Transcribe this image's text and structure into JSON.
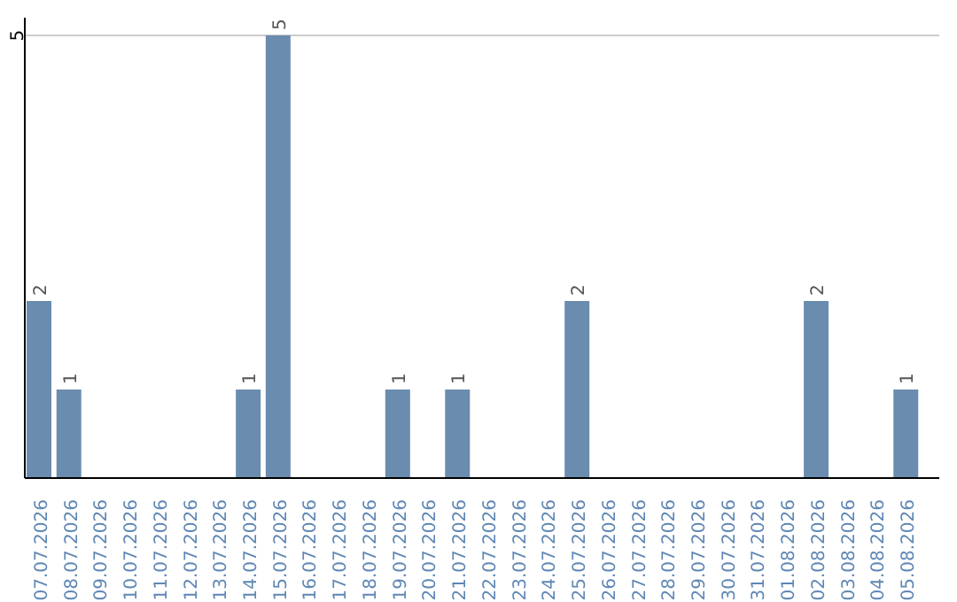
{
  "chart_data": {
    "type": "bar",
    "categories": [
      "07.07.2026",
      "08.07.2026",
      "09.07.2026",
      "10.07.2026",
      "11.07.2026",
      "12.07.2026",
      "13.07.2026",
      "14.07.2026",
      "15.07.2026",
      "16.07.2026",
      "17.07.2026",
      "18.07.2026",
      "19.07.2026",
      "20.07.2026",
      "21.07.2026",
      "22.07.2026",
      "23.07.2026",
      "24.07.2026",
      "25.07.2026",
      "26.07.2026",
      "27.07.2026",
      "28.07.2026",
      "29.07.2026",
      "30.07.2026",
      "31.07.2026",
      "01.08.2026",
      "02.08.2026",
      "03.08.2026",
      "04.08.2026",
      "05.08.2026"
    ],
    "values": [
      2,
      1,
      0,
      0,
      0,
      0,
      0,
      1,
      5,
      0,
      0,
      0,
      1,
      0,
      1,
      0,
      0,
      0,
      2,
      0,
      0,
      0,
      0,
      0,
      0,
      0,
      2,
      0,
      0,
      1
    ],
    "color": "#6a8caf",
    "ylim": [
      0,
      5.2
    ],
    "yticks": [
      5
    ],
    "grid": "y",
    "value_labels": [
      "2",
      "1",
      null,
      null,
      null,
      null,
      null,
      "1",
      "5",
      null,
      null,
      null,
      "1",
      null,
      "1",
      null,
      null,
      null,
      "2",
      null,
      null,
      null,
      null,
      null,
      null,
      null,
      "2",
      null,
      null,
      "1"
    ]
  }
}
